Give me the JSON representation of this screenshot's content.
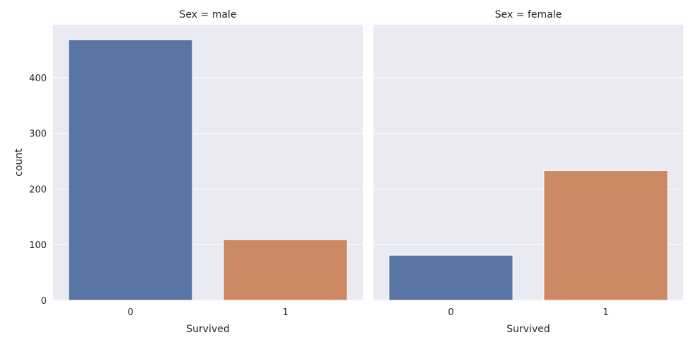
{
  "chart_data": {
    "type": "bar",
    "layout": "facet-columns",
    "ylabel": "count",
    "ylim": [
      0,
      495
    ],
    "yticks": [
      0,
      100,
      200,
      300,
      400
    ],
    "grid": true,
    "colors": {
      "0": "#5875a4",
      "1": "#cc8963",
      "background": "#eaeaf2",
      "grid": "#ffffff"
    },
    "panels": [
      {
        "title": "Sex = male",
        "xlabel": "Survived",
        "categories": [
          "0",
          "1"
        ],
        "values": [
          468,
          109
        ]
      },
      {
        "title": "Sex = female",
        "xlabel": "Survived",
        "categories": [
          "0",
          "1"
        ],
        "values": [
          81,
          233
        ]
      }
    ]
  }
}
